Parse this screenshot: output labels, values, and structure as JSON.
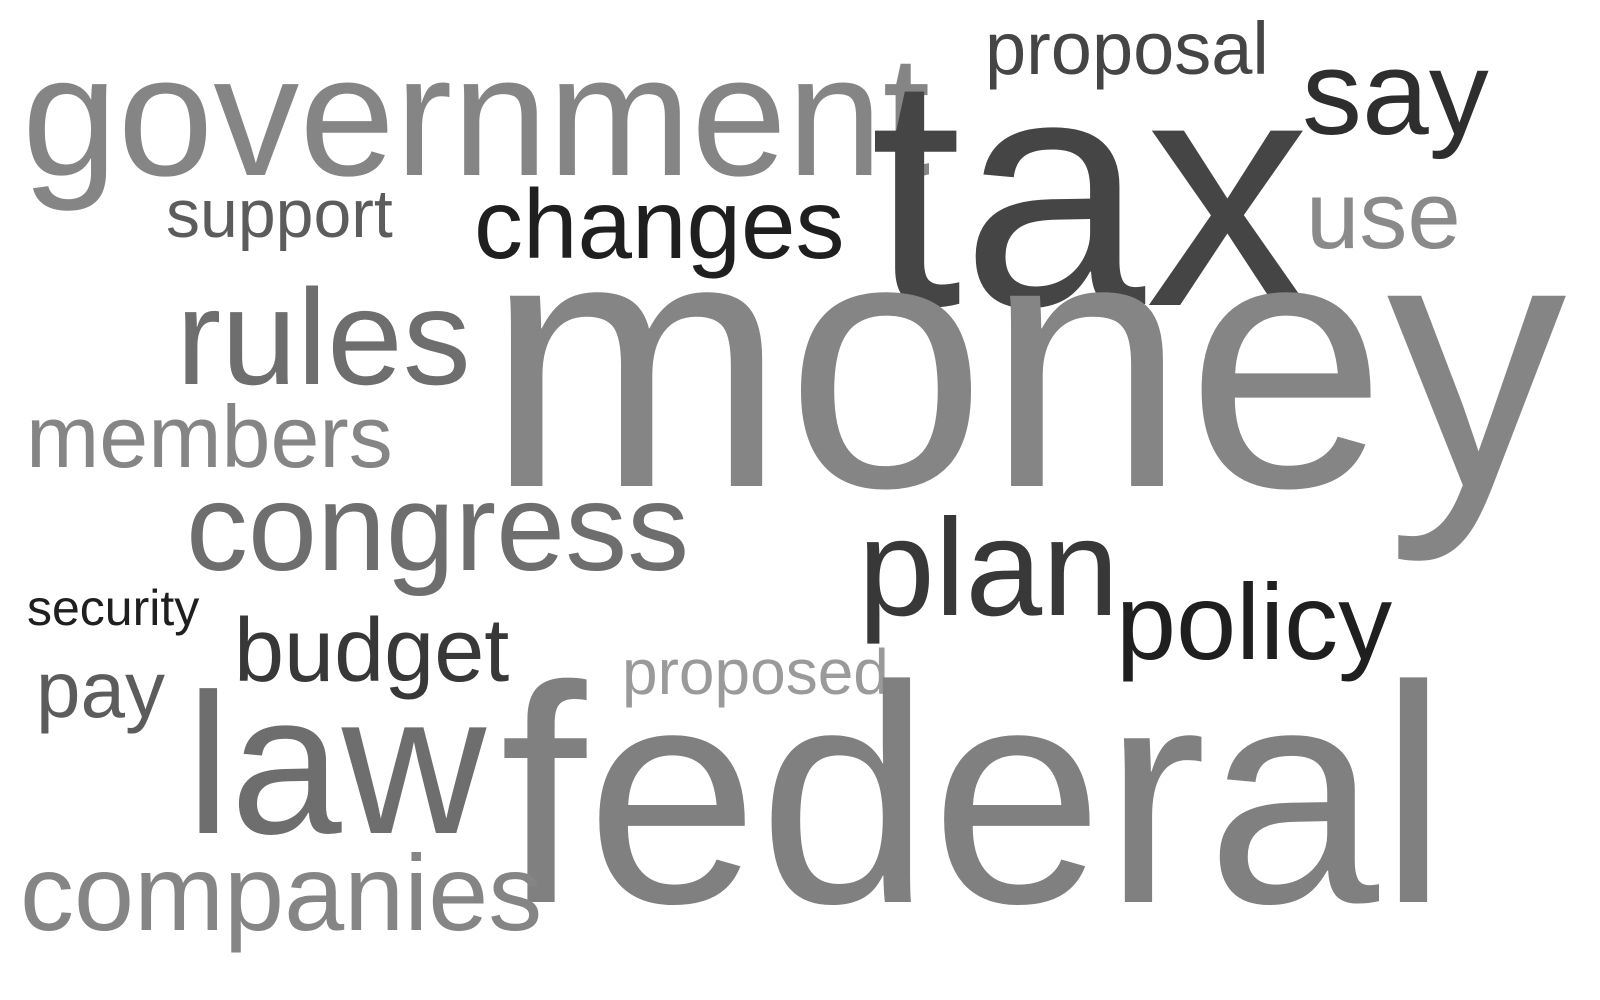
{
  "word_cloud": {
    "words": [
      {
        "id": "government",
        "text": "government",
        "color": "#858585"
      },
      {
        "id": "proposal",
        "text": "proposal",
        "color": "#454545"
      },
      {
        "id": "tax",
        "text": "tax",
        "color": "#454545"
      },
      {
        "id": "say",
        "text": "say",
        "color": "#2e2e2e"
      },
      {
        "id": "support",
        "text": "support",
        "color": "#5c5c5c"
      },
      {
        "id": "changes",
        "text": "changes",
        "color": "#1f1f1f"
      },
      {
        "id": "use",
        "text": "use",
        "color": "#8a8a8a"
      },
      {
        "id": "rules",
        "text": "rules",
        "color": "#6e6e6e"
      },
      {
        "id": "money",
        "text": "money",
        "color": "#858585"
      },
      {
        "id": "members",
        "text": "members",
        "color": "#858585"
      },
      {
        "id": "congress",
        "text": "congress",
        "color": "#6e6e6e"
      },
      {
        "id": "plan",
        "text": "plan",
        "color": "#383838"
      },
      {
        "id": "policy",
        "text": "policy",
        "color": "#1f1f1f"
      },
      {
        "id": "security",
        "text": "security",
        "color": "#1f1f1f"
      },
      {
        "id": "budget",
        "text": "budget",
        "color": "#383838"
      },
      {
        "id": "proposed",
        "text": "proposed",
        "color": "#9a9a9a"
      },
      {
        "id": "pay",
        "text": "pay",
        "color": "#5c5c5c"
      },
      {
        "id": "law",
        "text": "law",
        "color": "#6e6e6e"
      },
      {
        "id": "federal",
        "text": "federal",
        "color": "#808080"
      },
      {
        "id": "companies",
        "text": "companies",
        "color": "#858585"
      }
    ]
  }
}
